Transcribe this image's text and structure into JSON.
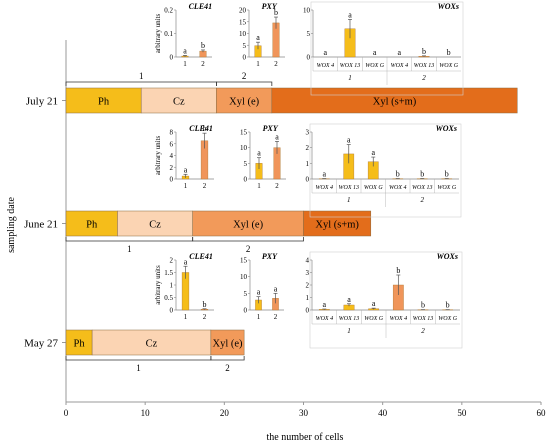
{
  "chart_data": {
    "type": "bar",
    "xlabel": "the number of cells",
    "ylabel": "sampling date",
    "xlim": [
      0,
      60
    ],
    "xticks": [
      0,
      10,
      20,
      30,
      40,
      50,
      60
    ],
    "grid": false,
    "colors": {
      "Ph": "#f5bd1a",
      "Cz": "#fbd4b3",
      "Xyl (e)": "#f29a5a",
      "Xyl (s+m)": "#e36d1b",
      "bar_1": "#f5bd1a",
      "bar_2": "#f0955a",
      "error": "#555555"
    },
    "dates": [
      {
        "label": "July 21",
        "segments": [
          {
            "name": "Ph",
            "value": 9.5
          },
          {
            "name": "Cz",
            "value": 9.5
          },
          {
            "name": "Xyl (e)",
            "value": 7.0
          },
          {
            "name": "Xyl (s+m)",
            "value": 31.0
          }
        ],
        "brackets": [
          {
            "label": "1",
            "from": 0,
            "to": 19
          },
          {
            "label": "2",
            "from": 19,
            "to": 26
          }
        ],
        "insets": [
          {
            "title": "CLE41",
            "ylabel": "arbitrary units",
            "ymax": 0.2,
            "ticks": [
              0,
              0.1,
              0.2
            ],
            "categories": [
              "1",
              "2"
            ],
            "values": [
              0.004,
              0.025
            ],
            "errors": [
              0.003,
              0.005
            ],
            "sig": [
              "a",
              "b"
            ]
          },
          {
            "title": "PXY",
            "ylabel": "",
            "ymax": 20,
            "ticks": [
              0,
              5,
              10,
              15,
              20
            ],
            "categories": [
              "1",
              "2"
            ],
            "values": [
              4.8,
              14.5
            ],
            "errors": [
              1.5,
              2.5
            ],
            "sig": [
              "a",
              "b"
            ]
          },
          {
            "title": "WOXs",
            "ylabel": "",
            "ymax": 10,
            "ticks": [
              0,
              5,
              10
            ],
            "categories": [
              "WOX 4",
              "WOX 13",
              "WOX G",
              "WOX 4",
              "WOX 13",
              "WOX G"
            ],
            "groups": [
              "1",
              "2"
            ],
            "values": [
              0,
              6.0,
              0,
              0,
              0.15,
              0
            ],
            "errors": [
              0,
              2.0,
              0,
              0,
              0.1,
              0
            ],
            "sig": [
              "a",
              "a",
              "a",
              "a",
              "b",
              "b"
            ]
          }
        ]
      },
      {
        "label": "June 21",
        "segments": [
          {
            "name": "Ph",
            "value": 6.5
          },
          {
            "name": "Cz",
            "value": 9.5
          },
          {
            "name": "Xyl (e)",
            "value": 14.0
          },
          {
            "name": "Xyl (s+m)",
            "value": 8.5
          }
        ],
        "brackets": [
          {
            "label": "1",
            "from": 0,
            "to": 16
          },
          {
            "label": "2",
            "from": 16,
            "to": 30
          }
        ],
        "insets": [
          {
            "title": "CLE41",
            "ylabel": "arbitrary units",
            "ymax": 8,
            "ticks": [
              0,
              2,
              4,
              6,
              8
            ],
            "categories": [
              "1",
              "2"
            ],
            "values": [
              0.5,
              6.5
            ],
            "errors": [
              0.3,
              1.3
            ],
            "sig": [
              "a",
              "b"
            ]
          },
          {
            "title": "PXY",
            "ylabel": "",
            "ymax": 15,
            "ticks": [
              0,
              5,
              10,
              15
            ],
            "categories": [
              "1",
              "2"
            ],
            "values": [
              5.0,
              10.0
            ],
            "errors": [
              1.8,
              2.0
            ],
            "sig": [
              "a",
              "a"
            ]
          },
          {
            "title": "WOXs",
            "ylabel": "",
            "ymax": 3,
            "ticks": [
              0,
              1,
              2,
              3
            ],
            "categories": [
              "WOX 4",
              "WOX 13",
              "WOX G",
              "WOX 4",
              "WOX 13",
              "WOX G"
            ],
            "groups": [
              "1",
              "2"
            ],
            "values": [
              0.02,
              1.6,
              1.1,
              0.02,
              0.02,
              0.02
            ],
            "errors": [
              0.01,
              0.6,
              0.3,
              0.01,
              0.01,
              0.01
            ],
            "sig": [
              "a",
              "a",
              "a",
              "b",
              "b",
              "b"
            ]
          }
        ]
      },
      {
        "label": "May 27",
        "segments": [
          {
            "name": "Ph",
            "value": 3.3
          },
          {
            "name": "Cz",
            "value": 15.0
          },
          {
            "name": "Xyl (e)",
            "value": 4.2
          }
        ],
        "brackets": [
          {
            "label": "1",
            "from": 0,
            "to": 18.3
          },
          {
            "label": "2",
            "from": 18.3,
            "to": 22.5
          }
        ],
        "insets": [
          {
            "title": "CLE41",
            "ylabel": "arbitrary units",
            "ymax": 2,
            "ticks": [
              0,
              0.5,
              1,
              1.5,
              2
            ],
            "categories": [
              "1",
              "2"
            ],
            "values": [
              1.5,
              0.03
            ],
            "errors": [
              0.25,
              0.02
            ],
            "sig": [
              "a",
              "b"
            ]
          },
          {
            "title": "PXY",
            "ylabel": "",
            "ymax": 15,
            "ticks": [
              0,
              5,
              10,
              15
            ],
            "categories": [
              "1",
              "2"
            ],
            "values": [
              3.0,
              3.5
            ],
            "errors": [
              1.0,
              1.5
            ],
            "sig": [
              "a",
              "a"
            ]
          },
          {
            "title": "WOXs",
            "ylabel": "",
            "ymax": 4,
            "ticks": [
              0,
              1,
              2,
              3,
              4
            ],
            "categories": [
              "WOX 4",
              "WOX 13",
              "WOX G",
              "WOX 4",
              "WOX 13",
              "WOX G"
            ],
            "groups": [
              "1",
              "2"
            ],
            "values": [
              0.05,
              0.4,
              0.1,
              2.0,
              0.02,
              0.02
            ],
            "errors": [
              0.03,
              0.1,
              0.05,
              0.8,
              0.01,
              0.01
            ],
            "sig": [
              "a",
              "a",
              "a",
              "b",
              "b",
              "b"
            ]
          }
        ]
      }
    ]
  }
}
